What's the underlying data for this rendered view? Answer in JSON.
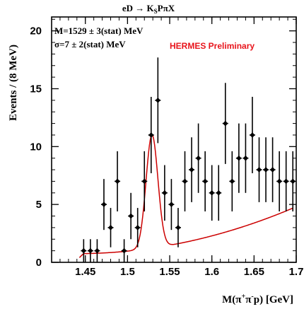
{
  "chart_data": {
    "type": "scatter",
    "title_main": "eD → K",
    "title_sub": "S",
    "title_rest": "PπX",
    "xlabel_main": "M(π",
    "xlabel_sup1": "+",
    "xlabel_mid": "π",
    "xlabel_sup2": "-",
    "xlabel_rest": "p) [GeV]",
    "ylabel": "Events / (8 MeV)",
    "annotation_mass": "M=1529 ± 3(stat) MeV",
    "annotation_width": "σ=7 ± 2(stat) MeV",
    "annotation_prelim": "HERMES Preliminary",
    "annotation_color": "#e8141b",
    "curve_color": "#cc0000",
    "xlim": [
      1.41,
      1.7
    ],
    "ylim": [
      0,
      21.2
    ],
    "xticks": [
      1.45,
      1.5,
      1.55,
      1.6,
      1.65,
      1.7
    ],
    "xtick_labels": [
      "1.45",
      "1.5",
      "1.55",
      "1.6",
      "1.65",
      "1.7"
    ],
    "yticks": [
      0,
      5,
      10,
      15,
      20
    ],
    "ytick_labels": [
      "0",
      "5",
      "10",
      "15",
      "20"
    ],
    "points": [
      {
        "x": 1.448,
        "y": 1,
        "err": 1
      },
      {
        "x": 1.456,
        "y": 1,
        "err": 1
      },
      {
        "x": 1.464,
        "y": 1,
        "err": 1
      },
      {
        "x": 1.472,
        "y": 5,
        "err": 2.2
      },
      {
        "x": 1.48,
        "y": 3,
        "err": 1.7
      },
      {
        "x": 1.488,
        "y": 7,
        "err": 2.6
      },
      {
        "x": 1.496,
        "y": 1,
        "err": 1
      },
      {
        "x": 1.504,
        "y": 4,
        "err": 2
      },
      {
        "x": 1.512,
        "y": 3,
        "err": 1.7
      },
      {
        "x": 1.52,
        "y": 7,
        "err": 2.6
      },
      {
        "x": 1.528,
        "y": 11,
        "err": 3.3
      },
      {
        "x": 1.536,
        "y": 14,
        "err": 3.7
      },
      {
        "x": 1.544,
        "y": 6,
        "err": 2.4
      },
      {
        "x": 1.552,
        "y": 5,
        "err": 2.2
      },
      {
        "x": 1.56,
        "y": 3,
        "err": 1.7
      },
      {
        "x": 1.568,
        "y": 7,
        "err": 2.6
      },
      {
        "x": 1.576,
        "y": 8,
        "err": 2.8
      },
      {
        "x": 1.584,
        "y": 9,
        "err": 3
      },
      {
        "x": 1.592,
        "y": 7,
        "err": 2.6
      },
      {
        "x": 1.6,
        "y": 6,
        "err": 2.4
      },
      {
        "x": 1.608,
        "y": 6,
        "err": 2.4
      },
      {
        "x": 1.616,
        "y": 12,
        "err": 3.5
      },
      {
        "x": 1.624,
        "y": 7,
        "err": 2.6
      },
      {
        "x": 1.632,
        "y": 9,
        "err": 3
      },
      {
        "x": 1.64,
        "y": 9,
        "err": 3
      },
      {
        "x": 1.648,
        "y": 11,
        "err": 3.3
      },
      {
        "x": 1.656,
        "y": 8,
        "err": 2.8
      },
      {
        "x": 1.664,
        "y": 8,
        "err": 2.8
      },
      {
        "x": 1.672,
        "y": 8,
        "err": 2.8
      },
      {
        "x": 1.68,
        "y": 7,
        "err": 2.6
      },
      {
        "x": 1.688,
        "y": 7,
        "err": 2.6
      },
      {
        "x": 1.696,
        "y": 7,
        "err": 2.6
      }
    ],
    "fit": {
      "peak_mass": 1.529,
      "sigma": 0.007
    },
    "grid": false,
    "legend": "none"
  }
}
